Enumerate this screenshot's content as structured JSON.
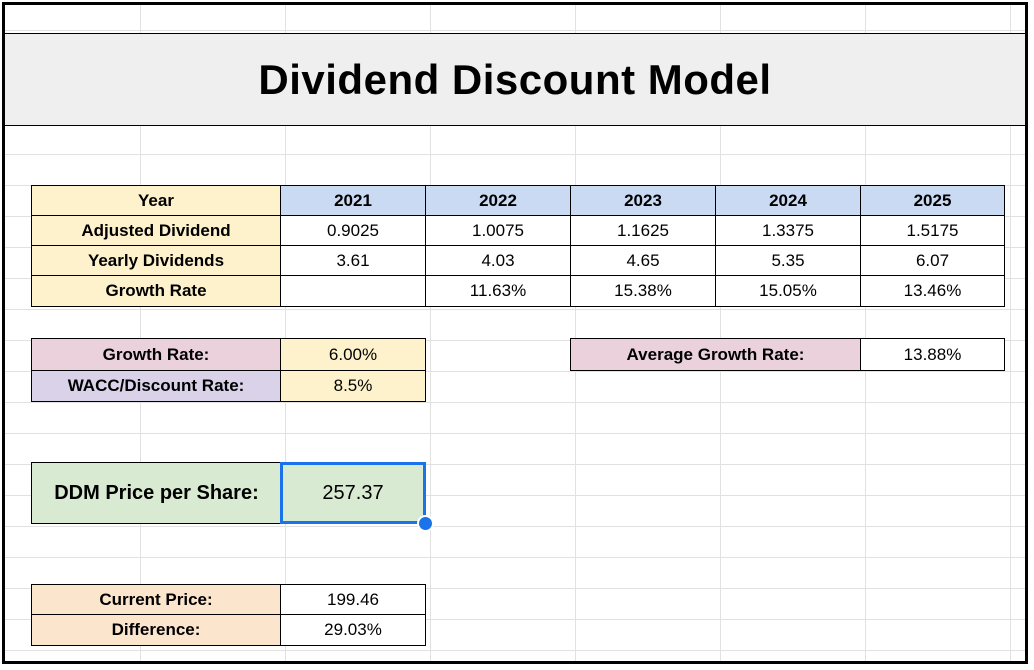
{
  "title": "Dividend Discount Model",
  "table": {
    "year_label": "Year",
    "years": [
      "2021",
      "2022",
      "2023",
      "2024",
      "2025"
    ],
    "rows": [
      {
        "label": "Adjusted Dividend",
        "values": [
          "0.9025",
          "1.0075",
          "1.1625",
          "1.3375",
          "1.5175"
        ]
      },
      {
        "label": "Yearly Dividends",
        "values": [
          "3.61",
          "4.03",
          "4.65",
          "5.35",
          "6.07"
        ]
      },
      {
        "label": "Growth Rate",
        "values": [
          "",
          "11.63%",
          "15.38%",
          "15.05%",
          "13.46%"
        ]
      }
    ]
  },
  "inputs": {
    "growth_rate_label": "Growth Rate:",
    "growth_rate_value": "6.00%",
    "wacc_label": "WACC/Discount Rate:",
    "wacc_value": "8.5%"
  },
  "average": {
    "label": "Average Growth Rate:",
    "value": "13.88%"
  },
  "ddm": {
    "label": "DDM Price per Share:",
    "value": "257.37"
  },
  "comparison": {
    "current_price_label": "Current Price:",
    "current_price_value": "199.46",
    "difference_label": "Difference:",
    "difference_value": "29.03%"
  },
  "colors": {
    "label_yellow": "#fdf2cc",
    "header_blue": "#cadaf3",
    "label_pink": "#ead1dc",
    "label_lavender": "#d9d2e9",
    "ddm_green": "#d9ead3",
    "label_peach": "#fbe5cd",
    "selection_blue": "#1a73e8"
  }
}
